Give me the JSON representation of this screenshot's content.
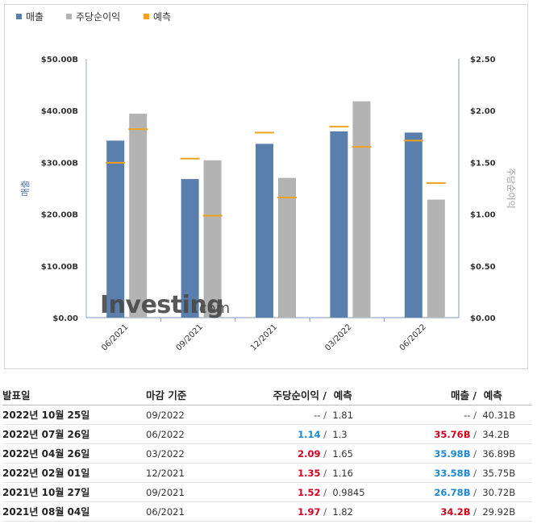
{
  "legend": [
    {
      "label": "매출",
      "color": "#5b7fad"
    },
    {
      "label": "주당순이익",
      "color": "#b3b3b3"
    },
    {
      "label": "예측",
      "color": "#f0a21e"
    }
  ],
  "watermark": {
    "brand": "Investing",
    "suffix": ".com"
  },
  "chart_data": {
    "type": "bar",
    "categories": [
      "06/2021",
      "09/2021",
      "12/2021",
      "03/2022",
      "06/2022"
    ],
    "series": [
      {
        "name": "매출",
        "axis": "left",
        "color": "#5b7fad",
        "values": [
          34.2,
          26.78,
          33.58,
          35.98,
          35.76
        ]
      },
      {
        "name": "주당순이익",
        "axis": "right",
        "color": "#b3b3b3",
        "values": [
          1.97,
          1.52,
          1.35,
          2.09,
          1.14
        ]
      }
    ],
    "forecast": {
      "name": "예측",
      "color": "#f0a21e",
      "revenue": [
        29.92,
        30.72,
        35.75,
        36.89,
        34.2
      ],
      "eps": [
        1.82,
        0.9845,
        1.16,
        1.65,
        1.3
      ]
    },
    "ylabel_left": "매출",
    "ylabel_right": "주당순이익",
    "ylim_left": [
      0,
      50
    ],
    "ylim_right": [
      0,
      2.5
    ],
    "yticks_left": [
      "$0.00",
      "$10.00B",
      "$20.00B",
      "$30.00B",
      "$40.00B",
      "$50.00B"
    ],
    "yticks_right": [
      "$0.00",
      "$0.50",
      "$1.00",
      "$1.50",
      "$2.00",
      "$2.50"
    ],
    "grid": false,
    "legend_position": "top-left"
  },
  "table": {
    "headers": {
      "date": "발표일",
      "period": "마감 기준",
      "eps": "주당순이익",
      "eps_sep": "/",
      "eps_forecast": "예측",
      "revenue": "매출",
      "revenue_sep": "/",
      "revenue_forecast": "예측"
    },
    "rows": [
      {
        "date": "2022년 10월 25일",
        "period": "09/2022",
        "eps": "--",
        "eps_color": "none",
        "eps_forecast": "1.81",
        "revenue": "--",
        "revenue_color": "none",
        "revenue_forecast": "40.31B"
      },
      {
        "date": "2022년 07월 26일",
        "period": "06/2022",
        "eps": "1.14",
        "eps_color": "blue",
        "eps_forecast": "1.3",
        "revenue": "35.76B",
        "revenue_color": "red",
        "revenue_forecast": "34.2B"
      },
      {
        "date": "2022년 04월 26일",
        "period": "03/2022",
        "eps": "2.09",
        "eps_color": "red",
        "eps_forecast": "1.65",
        "revenue": "35.98B",
        "revenue_color": "blue",
        "revenue_forecast": "36.89B"
      },
      {
        "date": "2022년 02월 01일",
        "period": "12/2021",
        "eps": "1.35",
        "eps_color": "red",
        "eps_forecast": "1.16",
        "revenue": "33.58B",
        "revenue_color": "blue",
        "revenue_forecast": "35.75B"
      },
      {
        "date": "2021년 10월 27일",
        "period": "09/2021",
        "eps": "1.52",
        "eps_color": "red",
        "eps_forecast": "0.9845",
        "revenue": "26.78B",
        "revenue_color": "blue",
        "revenue_forecast": "30.72B"
      },
      {
        "date": "2021년 08월 04일",
        "period": "06/2021",
        "eps": "1.97",
        "eps_color": "red",
        "eps_forecast": "1.82",
        "revenue": "34.2B",
        "revenue_color": "red",
        "revenue_forecast": "29.92B"
      }
    ]
  }
}
